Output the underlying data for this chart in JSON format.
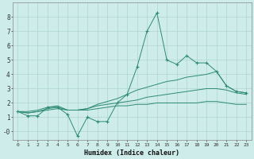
{
  "x": [
    0,
    1,
    2,
    3,
    4,
    5,
    6,
    7,
    8,
    9,
    10,
    11,
    12,
    13,
    14,
    15,
    16,
    17,
    18,
    19,
    20,
    21,
    22,
    23
  ],
  "line_jagged": [
    1.4,
    1.1,
    1.1,
    1.7,
    1.7,
    1.2,
    -0.3,
    1.0,
    0.7,
    0.7,
    2.0,
    2.6,
    4.5,
    7.0,
    8.3,
    5.0,
    4.7,
    5.3,
    4.8,
    4.8,
    4.2,
    3.2,
    2.8,
    2.7
  ],
  "line_upper": [
    1.4,
    1.4,
    1.5,
    1.7,
    1.8,
    1.5,
    1.5,
    1.6,
    1.9,
    2.1,
    2.3,
    2.6,
    2.9,
    3.1,
    3.3,
    3.5,
    3.6,
    3.8,
    3.9,
    4.0,
    4.2,
    3.2,
    2.8,
    2.7
  ],
  "line_mid": [
    1.4,
    1.3,
    1.4,
    1.6,
    1.7,
    1.5,
    1.5,
    1.6,
    1.8,
    1.9,
    2.0,
    2.1,
    2.2,
    2.4,
    2.5,
    2.6,
    2.7,
    2.8,
    2.9,
    3.0,
    3.0,
    2.9,
    2.7,
    2.6
  ],
  "line_lower": [
    1.4,
    1.3,
    1.4,
    1.5,
    1.6,
    1.5,
    1.5,
    1.5,
    1.6,
    1.7,
    1.8,
    1.8,
    1.9,
    1.9,
    2.0,
    2.0,
    2.0,
    2.0,
    2.0,
    2.1,
    2.1,
    2.0,
    1.9,
    1.9
  ],
  "color": "#2e8b74",
  "bg_color": "#ceecea",
  "grid_color": "#aed4d0",
  "xlabel": "Humidex (Indice chaleur)",
  "ylim": [
    -0.6,
    9.0
  ],
  "xlim": [
    -0.5,
    23.5
  ],
  "yticks": [
    0,
    1,
    2,
    3,
    4,
    5,
    6,
    7,
    8
  ],
  "ytick_labels": [
    "-0",
    "1",
    "2",
    "3",
    "4",
    "5",
    "6",
    "7",
    "8"
  ]
}
